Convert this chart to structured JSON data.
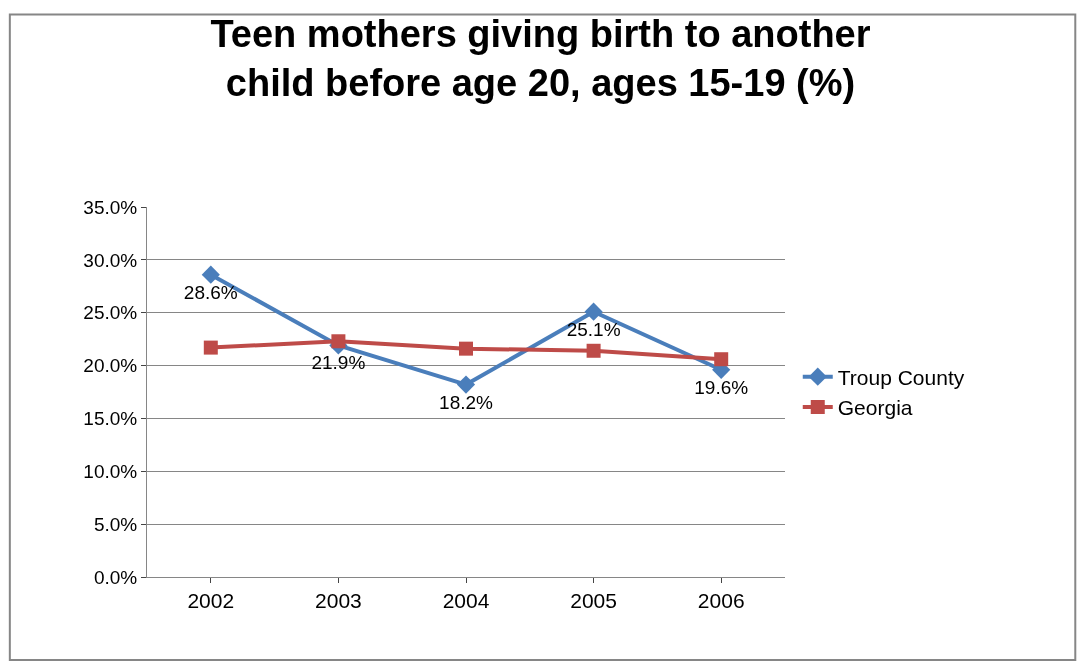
{
  "chart_data": {
    "type": "line",
    "title": "Teen mothers giving birth to another child before age 20, ages 15-19 (%)",
    "categories": [
      "2002",
      "2003",
      "2004",
      "2005",
      "2006"
    ],
    "series": [
      {
        "name": "Troup County",
        "color": "#4a7ebb",
        "marker": "diamond",
        "values": [
          28.6,
          21.9,
          18.2,
          25.1,
          19.6
        ],
        "value_labels": [
          "28.6%",
          "21.9%",
          "18.2%",
          "25.1%",
          "19.6%"
        ]
      },
      {
        "name": "Georgia",
        "color": "#be4b48",
        "marker": "square",
        "values": [
          21.7,
          22.3,
          21.6,
          21.4,
          20.6
        ]
      }
    ],
    "ylim": [
      0,
      35
    ],
    "yticks": [
      {
        "value": 0,
        "label": "0.0%"
      },
      {
        "value": 5,
        "label": "5.0%"
      },
      {
        "value": 10,
        "label": "10.0%"
      },
      {
        "value": 15,
        "label": "15.0%"
      },
      {
        "value": 20,
        "label": "20.0%"
      },
      {
        "value": 25,
        "label": "25.0%"
      },
      {
        "value": 30,
        "label": "30.0%"
      },
      {
        "value": 35,
        "label": "35.0%"
      }
    ],
    "grid": "y",
    "legend": "right"
  }
}
